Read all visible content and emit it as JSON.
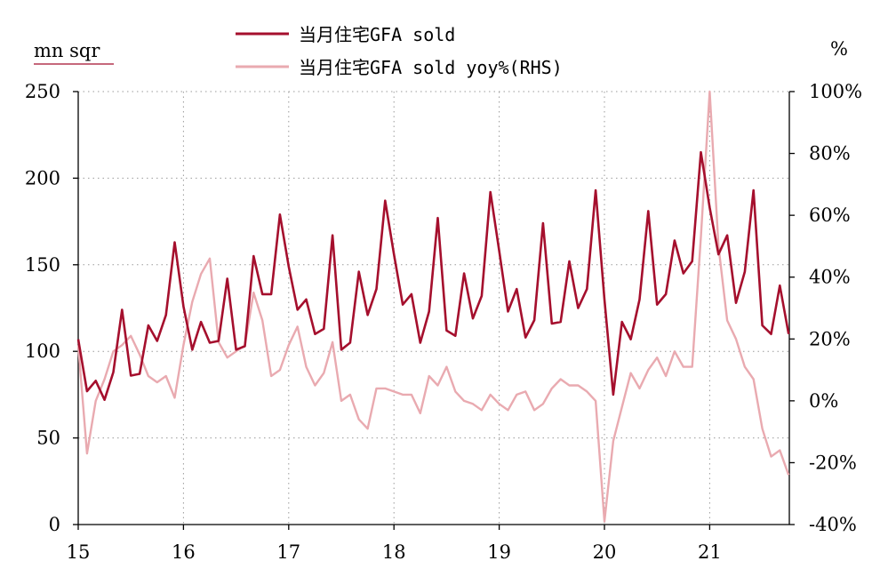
{
  "chart_data": {
    "type": "line",
    "left_unit": "mn sqr",
    "right_unit": "%",
    "x_ticks": [
      "15",
      "16",
      "17",
      "18",
      "19",
      "20",
      "21"
    ],
    "y_left": {
      "min": 0,
      "max": 250,
      "step": 50,
      "ticks": [
        "0",
        "50",
        "100",
        "150",
        "200",
        "250"
      ]
    },
    "y_right": {
      "min": -40,
      "max": 100,
      "step": 20,
      "ticks": [
        "-40%",
        "-20%",
        "0%",
        "20%",
        "40%",
        "60%",
        "80%",
        "100%"
      ]
    },
    "x_range": [
      2015.0,
      2021.75
    ],
    "grid": true,
    "legend_position": "top-center",
    "series": [
      {
        "name": "当月住宅GFA sold",
        "axis": "left",
        "color": "#a50f2d",
        "x_start": 2015.0,
        "x_step": 0.0833333,
        "values": [
          107,
          77,
          83,
          72,
          88,
          124,
          86,
          87,
          115,
          106,
          121,
          163,
          126,
          101,
          117,
          105,
          106,
          142,
          101,
          103,
          155,
          133,
          133,
          179,
          149,
          124,
          130,
          110,
          113,
          167,
          101,
          105,
          146,
          121,
          136,
          187,
          156,
          127,
          133,
          105,
          123,
          177,
          112,
          109,
          145,
          119,
          132,
          192,
          158,
          123,
          136,
          108,
          118,
          174,
          116,
          117,
          152,
          125,
          136,
          193,
          130,
          75,
          117,
          107,
          130,
          181,
          127,
          133,
          164,
          145,
          152,
          215,
          183,
          156,
          167,
          128,
          146,
          193,
          115,
          110,
          138,
          110
        ]
      },
      {
        "name": "当月住宅GFA sold yoy%(RHS)",
        "axis": "right",
        "color": "#e9aab0",
        "x_start": 2015.0,
        "x_step": 0.0833333,
        "values": [
          18,
          -17,
          0,
          7,
          16,
          18,
          21,
          15,
          8,
          6,
          8,
          1,
          18,
          32,
          41,
          46,
          19,
          14,
          16,
          18,
          35,
          26,
          8,
          10,
          18,
          24,
          11,
          5,
          9,
          19,
          0,
          2,
          -6,
          -9,
          4,
          4,
          3,
          2,
          2,
          -4,
          8,
          5,
          11,
          3,
          0,
          -1,
          -3,
          2,
          -1,
          -3,
          2,
          3,
          -3,
          -1,
          4,
          7,
          5,
          5,
          3,
          0,
          -39,
          -13,
          -2,
          9,
          4,
          10,
          14,
          8,
          16,
          11,
          11,
          53,
          100,
          50,
          26,
          20,
          11,
          7,
          -9,
          -18,
          -16,
          -24
        ]
      }
    ]
  }
}
